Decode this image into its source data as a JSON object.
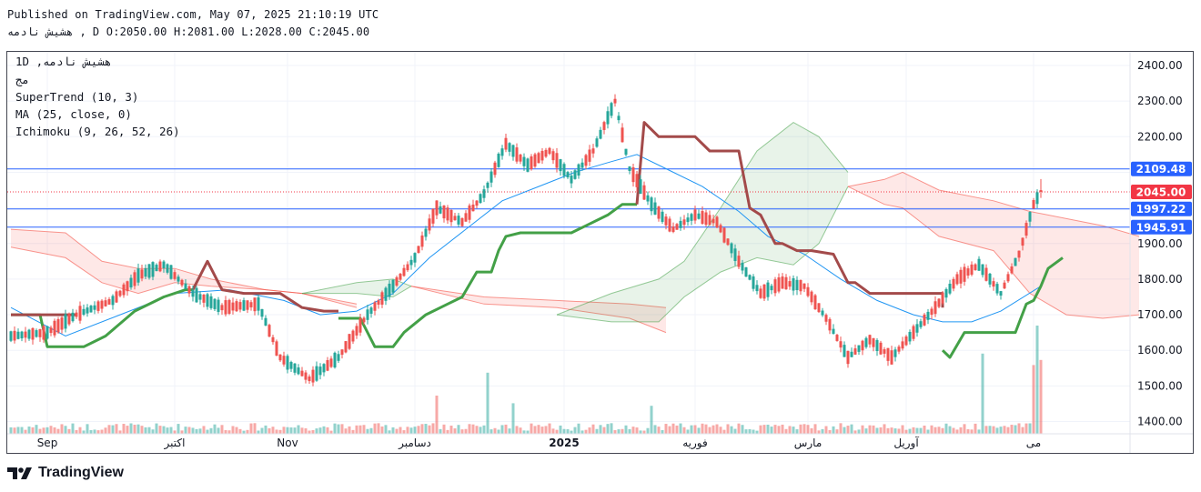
{
  "header": {
    "published": "Published on TradingView.com, May 07, 2025 21:10:19 UTC",
    "symbol_line": "هشیش نادمه , D O:2050.00 H:2081.00 L:2028.00 C:2045.00"
  },
  "legend": {
    "symbol": "1D ,هشیش نادمه",
    "exchange": "مج",
    "supertrend": "SuperTrend (10, 3)",
    "ma": "MA (25, close, 0)",
    "ichimoku": "Ichimoku (9, 26, 52, 26)"
  },
  "brand": {
    "name": "TradingView"
  },
  "colors": {
    "up": "#26a69a",
    "down": "#ef5350",
    "supertrend_up": "#43a047",
    "supertrend_down": "#a34a4a",
    "ma": "#2196f3",
    "hline": "#2962ff",
    "price_label": "#f23645"
  },
  "chart_data": {
    "type": "candlestick",
    "title": "هشیش نادمه, 1D",
    "ylim": [
      1380,
      2440
    ],
    "y_ticks": [
      "2400.00",
      "2300.00",
      "2200.00",
      "2100.00",
      "2000.00",
      "1900.00",
      "1800.00",
      "1700.00",
      "1600.00",
      "1500.00",
      "1400.00"
    ],
    "x_labels": [
      {
        "label": "Sep",
        "index": 10
      },
      {
        "label": "اکتبر",
        "index": 45
      },
      {
        "label": "Nov",
        "index": 76
      },
      {
        "label": "دسامبر",
        "index": 111
      },
      {
        "label": "2025",
        "index": 152
      },
      {
        "label": "فوریه",
        "index": 188
      },
      {
        "label": "مارس",
        "index": 219
      },
      {
        "label": "آوریل",
        "index": 246
      },
      {
        "label": "می",
        "index": 281
      }
    ],
    "bar_count": 310,
    "levels": [
      {
        "value": 2109.48,
        "label": "2109.48",
        "kind": "line"
      },
      {
        "value": 1997.22,
        "label": "1997.22",
        "kind": "line"
      },
      {
        "value": 1945.91,
        "label": "1945.91",
        "kind": "line"
      },
      {
        "value": 2045.0,
        "label": "2045.00",
        "kind": "last"
      }
    ],
    "last": {
      "open": 2050.0,
      "high": 2081.0,
      "low": 2028.0,
      "close": 2045.0
    },
    "close_anchors": [
      [
        0,
        1640
      ],
      [
        10,
        1650
      ],
      [
        18,
        1700
      ],
      [
        28,
        1740
      ],
      [
        35,
        1810
      ],
      [
        42,
        1840
      ],
      [
        50,
        1760
      ],
      [
        58,
        1720
      ],
      [
        68,
        1730
      ],
      [
        74,
        1580
      ],
      [
        82,
        1520
      ],
      [
        90,
        1580
      ],
      [
        98,
        1700
      ],
      [
        105,
        1780
      ],
      [
        111,
        1860
      ],
      [
        117,
        2000
      ],
      [
        124,
        1960
      ],
      [
        130,
        2040
      ],
      [
        136,
        2180
      ],
      [
        142,
        2120
      ],
      [
        148,
        2160
      ],
      [
        154,
        2080
      ],
      [
        160,
        2160
      ],
      [
        166,
        2300
      ],
      [
        170,
        2110
      ],
      [
        176,
        2010
      ],
      [
        182,
        1940
      ],
      [
        188,
        1980
      ],
      [
        194,
        1960
      ],
      [
        200,
        1850
      ],
      [
        206,
        1760
      ],
      [
        212,
        1790
      ],
      [
        218,
        1780
      ],
      [
        224,
        1690
      ],
      [
        230,
        1580
      ],
      [
        236,
        1630
      ],
      [
        242,
        1580
      ],
      [
        248,
        1650
      ],
      [
        254,
        1720
      ],
      [
        260,
        1800
      ],
      [
        266,
        1840
      ],
      [
        272,
        1760
      ],
      [
        277,
        1870
      ],
      [
        281,
        2010
      ],
      [
        283,
        2045
      ]
    ],
    "ma_anchors": [
      [
        0,
        1720
      ],
      [
        15,
        1640
      ],
      [
        30,
        1700
      ],
      [
        45,
        1760
      ],
      [
        60,
        1770
      ],
      [
        75,
        1740
      ],
      [
        85,
        1700
      ],
      [
        95,
        1710
      ],
      [
        105,
        1760
      ],
      [
        115,
        1860
      ],
      [
        125,
        1940
      ],
      [
        135,
        2020
      ],
      [
        145,
        2060
      ],
      [
        155,
        2100
      ],
      [
        165,
        2130
      ],
      [
        172,
        2150
      ],
      [
        180,
        2110
      ],
      [
        190,
        2060
      ],
      [
        200,
        1990
      ],
      [
        208,
        1920
      ],
      [
        218,
        1870
      ],
      [
        228,
        1800
      ],
      [
        238,
        1740
      ],
      [
        248,
        1700
      ],
      [
        256,
        1680
      ],
      [
        264,
        1680
      ],
      [
        272,
        1710
      ],
      [
        283,
        1780
      ]
    ],
    "supertrend_up": [
      [
        [
          0,
          1700
        ],
        [
          8,
          1700
        ],
        [
          10,
          1610
        ],
        [
          20,
          1610
        ],
        [
          26,
          1640
        ],
        [
          34,
          1710
        ],
        [
          42,
          1750
        ],
        [
          48,
          1770
        ],
        [
          50,
          1770
        ]
      ],
      [
        [
          90,
          1690
        ],
        [
          96,
          1690
        ],
        [
          100,
          1610
        ],
        [
          105,
          1610
        ],
        [
          108,
          1650
        ],
        [
          114,
          1700
        ],
        [
          120,
          1730
        ],
        [
          124,
          1750
        ],
        [
          128,
          1820
        ],
        [
          132,
          1820
        ],
        [
          134,
          1880
        ],
        [
          136,
          1920
        ],
        [
          140,
          1930
        ],
        [
          150,
          1930
        ],
        [
          154,
          1930
        ],
        [
          158,
          1950
        ],
        [
          164,
          1980
        ],
        [
          168,
          2010
        ],
        [
          172,
          2010
        ]
      ],
      [
        [
          256,
          1600
        ],
        [
          258,
          1580
        ],
        [
          262,
          1650
        ],
        [
          270,
          1650
        ],
        [
          276,
          1650
        ],
        [
          279,
          1730
        ],
        [
          281,
          1740
        ],
        [
          283,
          1780
        ],
        [
          285,
          1830
        ],
        [
          289,
          1860
        ]
      ]
    ],
    "supertrend_down": [
      [
        [
          0,
          1700
        ],
        [
          18,
          1700
        ]
      ],
      [
        [
          50,
          1770
        ],
        [
          54,
          1850
        ],
        [
          58,
          1770
        ],
        [
          64,
          1760
        ],
        [
          70,
          1760
        ],
        [
          74,
          1760
        ],
        [
          80,
          1720
        ],
        [
          86,
          1710
        ],
        [
          90,
          1710
        ]
      ],
      [
        [
          172,
          2010
        ],
        [
          174,
          2240
        ],
        [
          178,
          2200
        ],
        [
          188,
          2200
        ],
        [
          192,
          2160
        ],
        [
          200,
          2160
        ],
        [
          203,
          2000
        ],
        [
          206,
          1980
        ],
        [
          210,
          1900
        ],
        [
          212,
          1900
        ],
        [
          216,
          1880
        ],
        [
          220,
          1880
        ],
        [
          226,
          1870
        ],
        [
          230,
          1790
        ],
        [
          232,
          1790
        ],
        [
          236,
          1760
        ],
        [
          242,
          1760
        ],
        [
          256,
          1760
        ],
        [
          256,
          1720
        ]
      ]
    ],
    "cloud_segments": [
      {
        "type": "bear",
        "a": [
          [
            0,
            1940
          ],
          [
            15,
            1930
          ],
          [
            25,
            1850
          ],
          [
            35,
            1830
          ],
          [
            45,
            1830
          ],
          [
            55,
            1800
          ],
          [
            70,
            1770
          ],
          [
            80,
            1760
          ],
          [
            95,
            1730
          ]
        ],
        "b": [
          [
            0,
            1890
          ],
          [
            15,
            1860
          ],
          [
            25,
            1790
          ],
          [
            35,
            1760
          ],
          [
            45,
            1790
          ],
          [
            55,
            1780
          ],
          [
            70,
            1770
          ],
          [
            80,
            1760
          ],
          [
            95,
            1720
          ]
        ]
      },
      {
        "type": "bull",
        "a": [
          [
            80,
            1760
          ],
          [
            95,
            1790
          ],
          [
            105,
            1800
          ],
          [
            110,
            1780
          ]
        ],
        "b": [
          [
            80,
            1760
          ],
          [
            95,
            1760
          ],
          [
            105,
            1750
          ],
          [
            110,
            1780
          ]
        ]
      },
      {
        "type": "bear",
        "a": [
          [
            110,
            1780
          ],
          [
            130,
            1750
          ],
          [
            150,
            1740
          ],
          [
            170,
            1730
          ],
          [
            180,
            1720
          ]
        ],
        "b": [
          [
            110,
            1780
          ],
          [
            130,
            1730
          ],
          [
            150,
            1720
          ],
          [
            170,
            1690
          ],
          [
            180,
            1650
          ]
        ]
      },
      {
        "type": "bull",
        "a": [
          [
            150,
            1700
          ],
          [
            165,
            1760
          ],
          [
            178,
            1800
          ],
          [
            185,
            1850
          ],
          [
            195,
            2000
          ],
          [
            205,
            2160
          ],
          [
            215,
            2240
          ],
          [
            222,
            2200
          ],
          [
            230,
            2100
          ]
        ],
        "b": [
          [
            150,
            1700
          ],
          [
            165,
            1680
          ],
          [
            178,
            1680
          ],
          [
            185,
            1750
          ],
          [
            195,
            1820
          ],
          [
            205,
            1860
          ],
          [
            215,
            1840
          ],
          [
            222,
            1900
          ],
          [
            230,
            2060
          ]
        ]
      },
      {
        "type": "bear",
        "a": [
          [
            230,
            2060
          ],
          [
            240,
            2080
          ],
          [
            245,
            2100
          ],
          [
            255,
            2050
          ],
          [
            270,
            2020
          ],
          [
            280,
            1990
          ],
          [
            300,
            1950
          ],
          [
            310,
            1920
          ]
        ],
        "b": [
          [
            230,
            2060
          ],
          [
            240,
            2010
          ],
          [
            245,
            2000
          ],
          [
            255,
            1920
          ],
          [
            270,
            1880
          ],
          [
            280,
            1760
          ],
          [
            290,
            1700
          ],
          [
            300,
            1690
          ],
          [
            310,
            1700
          ]
        ]
      }
    ],
    "volume": {
      "base_pct": 0.06,
      "spikes": [
        [
          117,
          0.3
        ],
        [
          131,
          0.48
        ],
        [
          138,
          0.24
        ],
        [
          176,
          0.22
        ],
        [
          267,
          0.63
        ],
        [
          281,
          0.54
        ],
        [
          282,
          0.85
        ],
        [
          283,
          0.58
        ]
      ]
    }
  }
}
